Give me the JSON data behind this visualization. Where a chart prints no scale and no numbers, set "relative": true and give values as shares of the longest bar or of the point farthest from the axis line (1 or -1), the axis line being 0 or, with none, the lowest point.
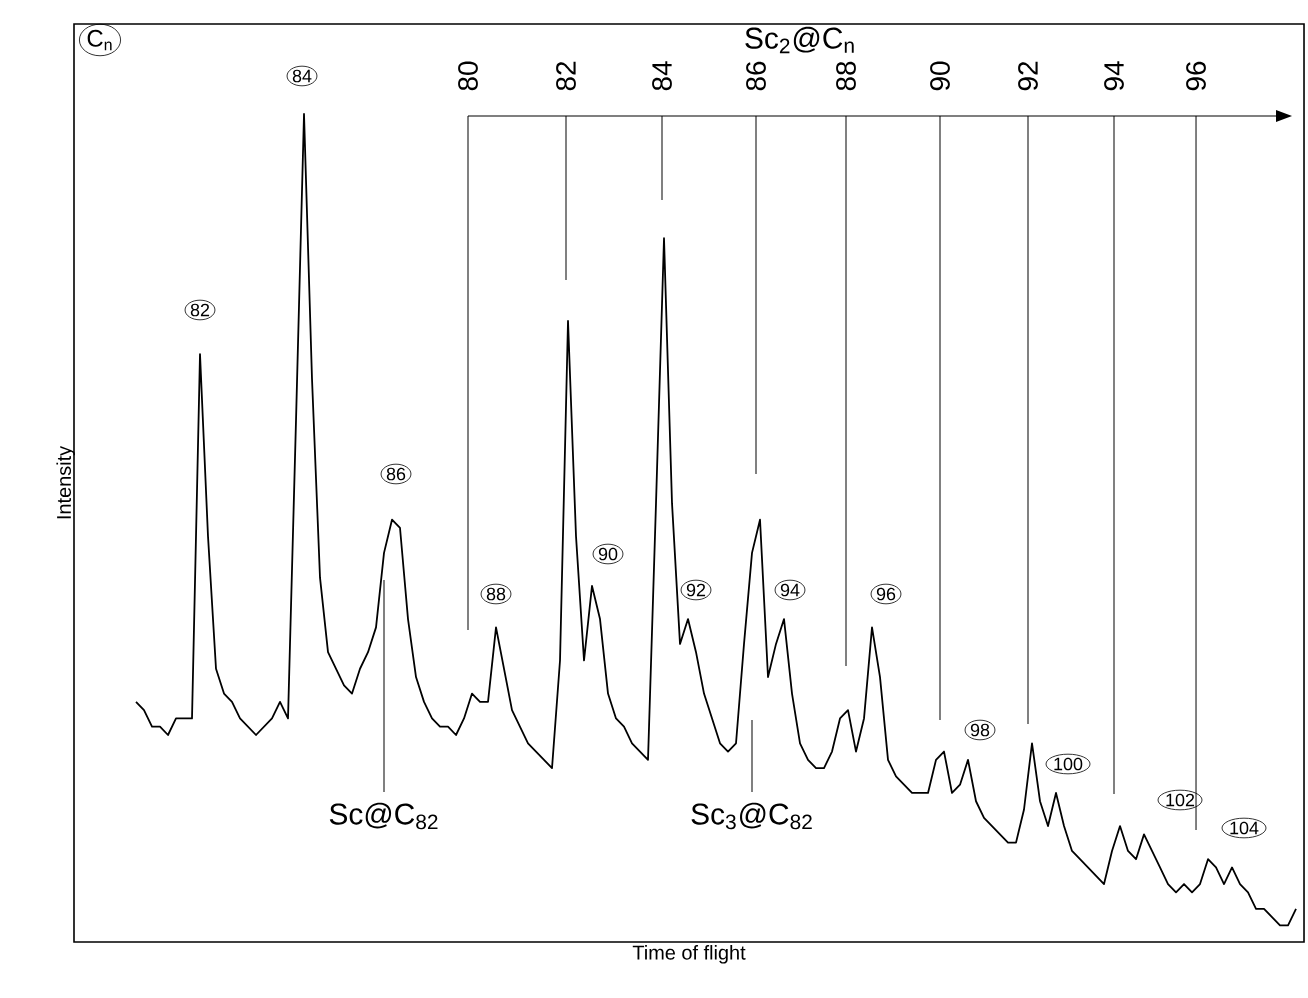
{
  "chart_data": {
    "type": "line",
    "xlabel": "Time of flight",
    "ylabel": "Intensity",
    "relative": true,
    "color": "#000000",
    "categories": [
      null,
      null,
      null,
      null,
      null,
      null,
      null,
      null,
      null,
      null,
      null,
      null,
      null,
      null,
      null,
      null,
      null,
      null,
      null,
      null,
      null,
      null,
      null,
      null,
      null,
      null,
      null,
      null,
      null,
      null,
      null,
      null,
      null,
      null,
      null,
      null,
      null,
      null,
      null,
      null,
      null,
      null,
      null,
      null,
      null,
      null,
      null,
      null,
      null,
      null,
      null,
      null,
      null,
      null,
      null,
      null,
      null,
      null,
      null,
      null,
      null,
      null,
      null,
      null,
      null,
      null,
      null,
      null,
      null,
      null,
      null,
      null,
      null,
      null,
      null,
      null,
      null,
      null,
      null,
      null,
      null,
      null,
      null,
      null,
      null,
      null,
      null,
      null,
      null,
      null,
      null,
      null,
      null,
      null,
      null,
      null,
      null,
      null,
      null,
      null,
      null,
      null,
      null,
      null,
      null,
      null,
      null,
      null,
      null,
      null,
      null,
      null,
      null,
      null,
      null,
      null,
      null,
      null,
      null,
      null,
      null,
      null,
      null,
      null,
      null,
      null,
      null,
      null,
      null,
      null,
      null,
      null,
      null,
      null,
      null,
      null,
      null,
      null,
      null,
      null,
      null,
      null,
      null,
      null,
      null,
      null
    ],
    "values": [
      0.29,
      0.28,
      0.26,
      0.26,
      0.25,
      0.27,
      0.27,
      0.27,
      0.71,
      0.49,
      0.33,
      0.3,
      0.29,
      0.27,
      0.26,
      0.25,
      0.26,
      0.27,
      0.29,
      0.27,
      0.63,
      1.0,
      0.68,
      0.44,
      0.35,
      0.33,
      0.31,
      0.3,
      0.33,
      0.35,
      0.38,
      0.47,
      0.51,
      0.5,
      0.39,
      0.32,
      0.29,
      0.27,
      0.26,
      0.26,
      0.25,
      0.27,
      0.3,
      0.29,
      0.29,
      0.38,
      0.33,
      0.28,
      0.26,
      0.24,
      0.23,
      0.22,
      0.21,
      0.34,
      0.75,
      0.49,
      0.34,
      0.43,
      0.39,
      0.3,
      0.27,
      0.26,
      0.24,
      0.23,
      0.22,
      0.53,
      0.85,
      0.53,
      0.36,
      0.39,
      0.35,
      0.3,
      0.27,
      0.24,
      0.23,
      0.24,
      0.36,
      0.47,
      0.51,
      0.32,
      0.36,
      0.39,
      0.3,
      0.24,
      0.22,
      0.21,
      0.21,
      0.23,
      0.27,
      0.28,
      0.23,
      0.27,
      0.38,
      0.32,
      0.22,
      0.2,
      0.19,
      0.18,
      0.18,
      0.18,
      0.22,
      0.23,
      0.18,
      0.19,
      0.22,
      0.17,
      0.15,
      0.14,
      0.13,
      0.12,
      0.12,
      0.16,
      0.24,
      0.17,
      0.14,
      0.18,
      0.14,
      0.11,
      0.1,
      0.09,
      0.08,
      0.07,
      0.11,
      0.14,
      0.11,
      0.1,
      0.13,
      0.11,
      0.09,
      0.07,
      0.06,
      0.07,
      0.06,
      0.07,
      0.1,
      0.09,
      0.07,
      0.09,
      0.07,
      0.06,
      0.04,
      0.04,
      0.03,
      0.02,
      0.02,
      0.04
    ],
    "annotations": [
      "C$_{n}$",
      "82",
      "84",
      "86",
      "88",
      "90",
      "92",
      "94",
      "96",
      "98",
      "100",
      "102",
      "104",
      "Sc$_{2}$@C$_{n}$",
      "80",
      "82",
      "84",
      "86",
      "88",
      "90",
      "92",
      "94",
      "96",
      "Sc@C$_{82}$",
      "Sc$_{3}$@C$_{82}$"
    ]
  }
}
